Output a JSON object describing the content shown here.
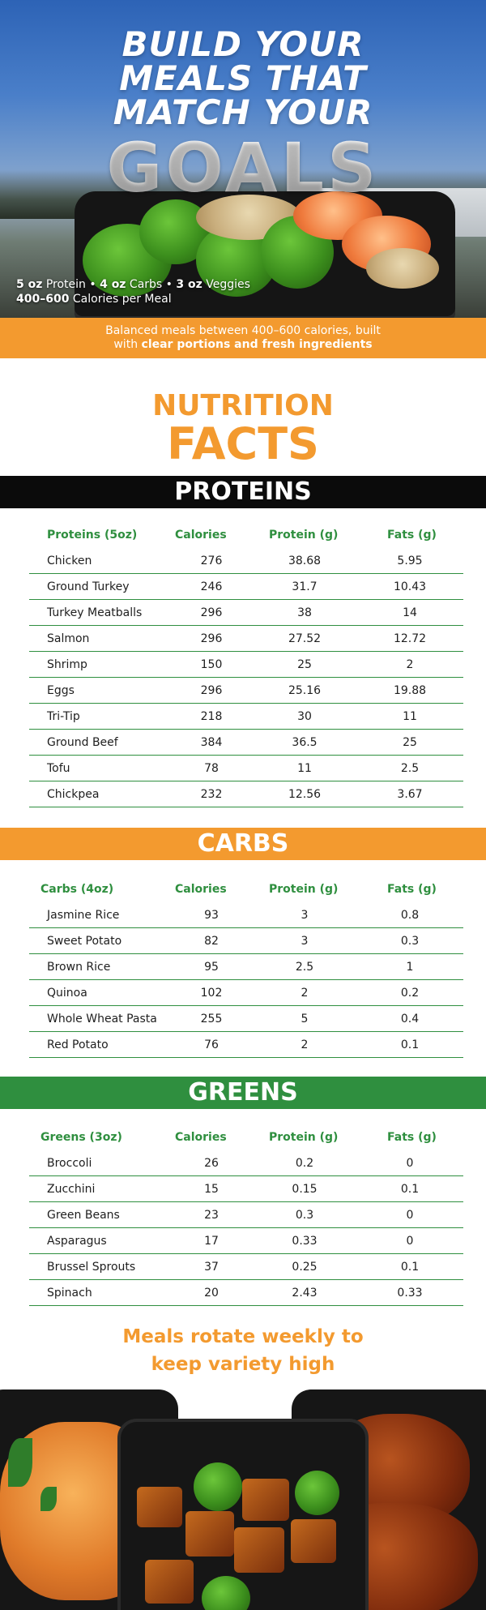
{
  "hero": {
    "title_line1": "BUILD YOUR",
    "title_line2": "MEALS THAT",
    "title_line3": "MATCH YOUR",
    "title_big": "GOALS",
    "sub_line1_bold1": "5 oz",
    "sub_line1_text1": " Protein • ",
    "sub_line1_bold2": "4 oz",
    "sub_line1_text2": " Carbs • ",
    "sub_line1_bold3": "3 oz",
    "sub_line1_text3": " Veggies",
    "sub_line2_bold": "400–600",
    "sub_line2_text": " Calories per Meal"
  },
  "banner": {
    "line1": "Balanced meals between 400–600 calories, built",
    "line2_text": "with ",
    "line2_bold": "clear portions and fresh ingredients"
  },
  "nutrition_facts": {
    "line1": "NUTRITION",
    "line2": "FACTS"
  },
  "proteins": {
    "heading": "PROTEINS",
    "columns": [
      "Proteins (5oz)",
      "Calories",
      "Protein (g)",
      "Fats (g)"
    ],
    "rows": [
      [
        "Chicken",
        "276",
        "38.68",
        "5.95"
      ],
      [
        "Ground Turkey",
        "246",
        "31.7",
        "10.43"
      ],
      [
        "Turkey Meatballs",
        "296",
        "38",
        "14"
      ],
      [
        "Salmon",
        "296",
        "27.52",
        "12.72"
      ],
      [
        "Shrimp",
        "150",
        "25",
        "2"
      ],
      [
        "Eggs",
        "296",
        "25.16",
        "19.88"
      ],
      [
        "Tri-Tip",
        "218",
        "30",
        "11"
      ],
      [
        "Ground Beef",
        "384",
        "36.5",
        "25"
      ],
      [
        "Tofu",
        "78",
        "11",
        "2.5"
      ],
      [
        "Chickpea",
        "232",
        "12.56",
        "3.67"
      ]
    ]
  },
  "carbs": {
    "heading": "CARBS",
    "columns": [
      "Carbs (4oz)",
      "Calories",
      "Protein (g)",
      "Fats (g)"
    ],
    "rows": [
      [
        "Jasmine Rice",
        "93",
        "3",
        "0.8"
      ],
      [
        "Sweet Potato",
        "82",
        "3",
        "0.3"
      ],
      [
        "Brown Rice",
        "95",
        "2.5",
        "1"
      ],
      [
        "Quinoa",
        "102",
        "2",
        "0.2"
      ],
      [
        "Whole Wheat Pasta",
        "255",
        "5",
        "0.4"
      ],
      [
        "Red Potato",
        "76",
        "2",
        "0.1"
      ]
    ]
  },
  "greens": {
    "heading": "GREENS",
    "columns": [
      "Greens (3oz)",
      "Calories",
      "Protein (g)",
      "Fats (g)"
    ],
    "rows": [
      [
        "Broccoli",
        "26",
        "0.2",
        "0"
      ],
      [
        "Zucchini",
        "15",
        "0.15",
        "0.1"
      ],
      [
        "Green Beans",
        "23",
        "0.3",
        "0"
      ],
      [
        "Asparagus",
        "17",
        "0.33",
        "0"
      ],
      [
        "Brussel Sprouts",
        "37",
        "0.25",
        "0.1"
      ],
      [
        "Spinach",
        "20",
        "2.43",
        "0.33"
      ]
    ]
  },
  "rotation": {
    "line1": "Meals rotate weekly to",
    "line2": "keep variety high"
  },
  "colors": {
    "orange": "#f39a2f",
    "green": "#2f8f3f",
    "black": "#0b0b0b"
  }
}
